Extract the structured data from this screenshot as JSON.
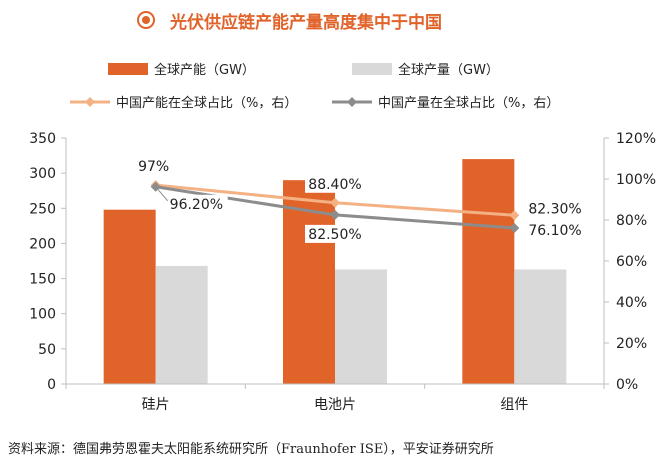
{
  "title": "光伏供应链产能产量高度集中于中国",
  "colors": {
    "accent": "#e0632a",
    "capacity_bar": "#e0632a",
    "production_bar": "#d9d9d9",
    "capacity_share_line": "#f4b183",
    "production_share_line": "#8c8c8c"
  },
  "legend": {
    "capacity": "全球产能（GW）",
    "production": "全球产量（GW）",
    "capacity_share": "中国产能在全球占比（%，右）",
    "production_share": "中国产量在全球占比（%，右）"
  },
  "chart_data": {
    "type": "bar",
    "categories": [
      "硅片",
      "电池片",
      "组件"
    ],
    "series": [
      {
        "name": "全球产能（GW）",
        "type": "bar",
        "axis": "left",
        "values": [
          248,
          290,
          320
        ]
      },
      {
        "name": "全球产量（GW）",
        "type": "bar",
        "axis": "left",
        "values": [
          168,
          163,
          163
        ]
      },
      {
        "name": "中国产能在全球占比（%，右）",
        "type": "line",
        "axis": "right",
        "values": [
          97,
          88.4,
          82.3
        ],
        "labels": [
          "97%",
          "88.40%",
          "82.30%"
        ]
      },
      {
        "name": "中国产量在全球占比（%，右）",
        "type": "line",
        "axis": "right",
        "values": [
          96.2,
          82.5,
          76.1
        ],
        "labels": [
          "96.20%",
          "82.50%",
          "76.10%"
        ]
      }
    ],
    "ylim": [
      0,
      350
    ],
    "yticks": [
      "0",
      "50",
      "100",
      "150",
      "200",
      "250",
      "300",
      "350"
    ],
    "y2lim": [
      0,
      120
    ],
    "y2ticks": [
      "0%",
      "20%",
      "40%",
      "60%",
      "80%",
      "100%",
      "120%"
    ],
    "grid": false,
    "legend_position": "top"
  },
  "source": "资料来源：德国弗劳恩霍夫太阳能系统研究所（Fraunhofer ISE），平安证券研究所"
}
